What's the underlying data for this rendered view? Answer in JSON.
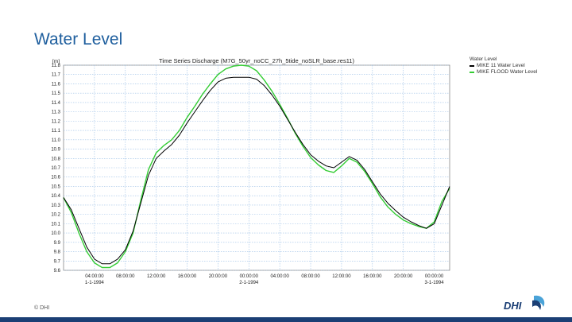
{
  "slide": {
    "title": "Water Level",
    "footer": "© DHI",
    "logo_text": "DHI"
  },
  "legend": {
    "heading": "Water Level",
    "items": [
      {
        "label": "MIKE 11 Water Level",
        "color": "#000000"
      },
      {
        "label": "MIKE FLOOD Water Level",
        "color": "#33cc33"
      }
    ]
  },
  "chart_data": {
    "type": "line",
    "title": "Time Series Discharge (M7G_50yr_noCC_27h_5tide_noSLR_base.res11)",
    "ylabel": "[m]",
    "xlabel": "",
    "ylim": [
      9.6,
      11.8
    ],
    "yticks": [
      "11.8",
      "11.7",
      "11.6",
      "11.5",
      "11.4",
      "11.3",
      "11.2",
      "11.1",
      "11.0",
      "10.9",
      "10.8",
      "10.7",
      "10.6",
      "10.5",
      "10.4",
      "10.3",
      "10.2",
      "10.1",
      "10.0",
      "9.9",
      "9.8",
      "9.7",
      "9.6"
    ],
    "xlim_hours": [
      0,
      50
    ],
    "xticks": [
      {
        "h": 4,
        "time": "04:00:00",
        "date": "1-1-1994"
      },
      {
        "h": 8,
        "time": "08:00:00",
        "date": ""
      },
      {
        "h": 12,
        "time": "12:00:00",
        "date": ""
      },
      {
        "h": 16,
        "time": "16:00:00",
        "date": ""
      },
      {
        "h": 20,
        "time": "20:00:00",
        "date": ""
      },
      {
        "h": 24,
        "time": "00:00:00",
        "date": "2-1-1994"
      },
      {
        "h": 28,
        "time": "04:00:00",
        "date": ""
      },
      {
        "h": 32,
        "time": "08:00:00",
        "date": ""
      },
      {
        "h": 36,
        "time": "12:00:00",
        "date": ""
      },
      {
        "h": 40,
        "time": "16:00:00",
        "date": ""
      },
      {
        "h": 44,
        "time": "20:00:00",
        "date": ""
      },
      {
        "h": 48,
        "time": "00:00:00",
        "date": "3-1-1994"
      }
    ],
    "grid": true,
    "series": [
      {
        "name": "MIKE 11 Water Level",
        "color": "#000000",
        "points": [
          [
            0,
            10.38
          ],
          [
            1,
            10.25
          ],
          [
            2,
            10.05
          ],
          [
            3,
            9.85
          ],
          [
            4,
            9.72
          ],
          [
            5,
            9.67
          ],
          [
            6,
            9.67
          ],
          [
            7,
            9.72
          ],
          [
            8,
            9.82
          ],
          [
            9,
            10.02
          ],
          [
            10,
            10.32
          ],
          [
            11,
            10.62
          ],
          [
            12,
            10.8
          ],
          [
            13,
            10.88
          ],
          [
            14,
            10.95
          ],
          [
            15,
            11.05
          ],
          [
            16,
            11.18
          ],
          [
            17,
            11.3
          ],
          [
            18,
            11.42
          ],
          [
            19,
            11.53
          ],
          [
            20,
            11.62
          ],
          [
            21,
            11.66
          ],
          [
            22,
            11.67
          ],
          [
            23,
            11.67
          ],
          [
            24,
            11.67
          ],
          [
            25,
            11.65
          ],
          [
            26,
            11.58
          ],
          [
            27,
            11.48
          ],
          [
            28,
            11.36
          ],
          [
            29,
            11.22
          ],
          [
            30,
            11.08
          ],
          [
            31,
            10.95
          ],
          [
            32,
            10.84
          ],
          [
            33,
            10.77
          ],
          [
            34,
            10.72
          ],
          [
            35,
            10.7
          ],
          [
            36,
            10.76
          ],
          [
            37,
            10.82
          ],
          [
            38,
            10.78
          ],
          [
            39,
            10.68
          ],
          [
            40,
            10.55
          ],
          [
            41,
            10.42
          ],
          [
            42,
            10.32
          ],
          [
            43,
            10.24
          ],
          [
            44,
            10.17
          ],
          [
            45,
            10.12
          ],
          [
            46,
            10.08
          ],
          [
            47,
            10.05
          ],
          [
            48,
            10.1
          ],
          [
            49,
            10.3
          ],
          [
            50,
            10.5
          ]
        ]
      },
      {
        "name": "MIKE FLOOD Water Level",
        "color": "#33cc33",
        "points": [
          [
            0,
            10.38
          ],
          [
            1,
            10.22
          ],
          [
            2,
            10.0
          ],
          [
            3,
            9.8
          ],
          [
            4,
            9.68
          ],
          [
            5,
            9.63
          ],
          [
            6,
            9.63
          ],
          [
            7,
            9.68
          ],
          [
            8,
            9.8
          ],
          [
            9,
            10.0
          ],
          [
            10,
            10.35
          ],
          [
            11,
            10.68
          ],
          [
            12,
            10.86
          ],
          [
            13,
            10.94
          ],
          [
            14,
            11.0
          ],
          [
            15,
            11.1
          ],
          [
            16,
            11.24
          ],
          [
            17,
            11.36
          ],
          [
            18,
            11.49
          ],
          [
            19,
            11.6
          ],
          [
            20,
            11.7
          ],
          [
            21,
            11.76
          ],
          [
            22,
            11.79
          ],
          [
            23,
            11.8
          ],
          [
            24,
            11.79
          ],
          [
            25,
            11.74
          ],
          [
            26,
            11.64
          ],
          [
            27,
            11.52
          ],
          [
            28,
            11.38
          ],
          [
            29,
            11.23
          ],
          [
            30,
            11.07
          ],
          [
            31,
            10.93
          ],
          [
            32,
            10.81
          ],
          [
            33,
            10.73
          ],
          [
            34,
            10.67
          ],
          [
            35,
            10.65
          ],
          [
            36,
            10.72
          ],
          [
            37,
            10.8
          ],
          [
            38,
            10.76
          ],
          [
            39,
            10.66
          ],
          [
            40,
            10.53
          ],
          [
            41,
            10.39
          ],
          [
            42,
            10.28
          ],
          [
            43,
            10.2
          ],
          [
            44,
            10.14
          ],
          [
            45,
            10.1
          ],
          [
            46,
            10.07
          ],
          [
            47,
            10.05
          ],
          [
            48,
            10.12
          ],
          [
            49,
            10.34
          ],
          [
            50,
            10.48
          ]
        ]
      }
    ]
  }
}
